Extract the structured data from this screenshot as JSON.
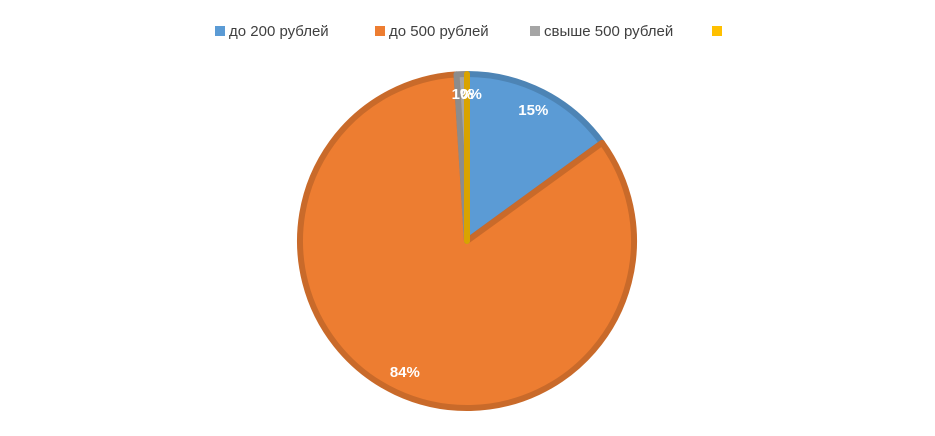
{
  "chart_data": {
    "type": "pie",
    "categories": [
      "до 200 рублей",
      "до 500 рублей",
      "свыше 500 рублей",
      null
    ],
    "values": [
      15,
      84,
      1,
      0
    ],
    "value_labels": [
      "15%",
      "84%",
      "1%",
      "0%"
    ],
    "colors": [
      "#5b9bd5",
      "#ed7d31",
      "#a5a5a5",
      "#ffc000"
    ],
    "legend": "top"
  }
}
